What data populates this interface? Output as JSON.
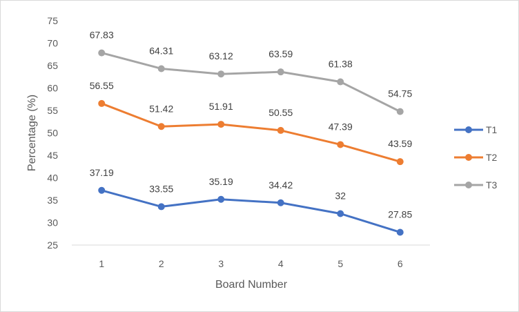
{
  "chart_data": {
    "type": "line",
    "x": [
      1,
      2,
      3,
      4,
      5,
      6
    ],
    "xlabel": "Board Number",
    "ylabel": "Percentage (%)",
    "ylim": [
      25,
      75
    ],
    "ytick_step": 5,
    "grid": false,
    "legend_position": "right",
    "series": [
      {
        "name": "T1",
        "color": "#4472c4",
        "values": [
          37.19,
          33.55,
          35.19,
          34.42,
          32,
          27.85
        ]
      },
      {
        "name": "T2",
        "color": "#ed7d31",
        "values": [
          56.55,
          51.42,
          51.91,
          50.55,
          47.39,
          43.59
        ]
      },
      {
        "name": "T3",
        "color": "#a5a5a5",
        "values": [
          67.83,
          64.31,
          63.12,
          63.59,
          61.38,
          54.75
        ]
      }
    ]
  }
}
